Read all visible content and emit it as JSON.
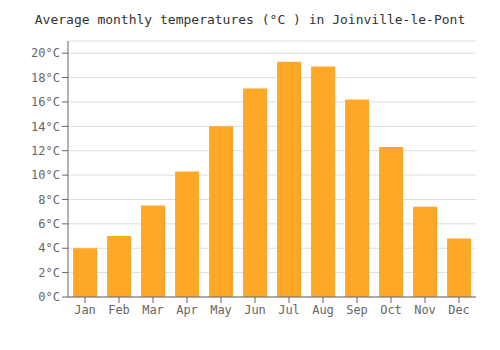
{
  "chart_data": {
    "type": "bar",
    "title": "Average monthly temperatures (°C ) in Joinville-le-Pont",
    "categories": [
      "Jan",
      "Feb",
      "Mar",
      "Apr",
      "May",
      "Jun",
      "Jul",
      "Aug",
      "Sep",
      "Oct",
      "Nov",
      "Dec"
    ],
    "values": [
      4.0,
      5.0,
      7.5,
      10.3,
      14.0,
      17.1,
      19.3,
      18.9,
      16.2,
      12.3,
      7.4,
      4.8
    ],
    "color": "#FFA726",
    "ylim": [
      0,
      21
    ],
    "yticks": [
      {
        "value": 0,
        "label": "0°C"
      },
      {
        "value": 2,
        "label": "2°C"
      },
      {
        "value": 4,
        "label": "4°C"
      },
      {
        "value": 6,
        "label": "6°C"
      },
      {
        "value": 8,
        "label": "8°C"
      },
      {
        "value": 10,
        "label": "10°C"
      },
      {
        "value": 12,
        "label": "12°C"
      },
      {
        "value": 14,
        "label": "14°C"
      },
      {
        "value": 16,
        "label": "16°C"
      },
      {
        "value": 18,
        "label": "18°C"
      },
      {
        "value": 20,
        "label": "20°C"
      }
    ],
    "grid": true
  }
}
